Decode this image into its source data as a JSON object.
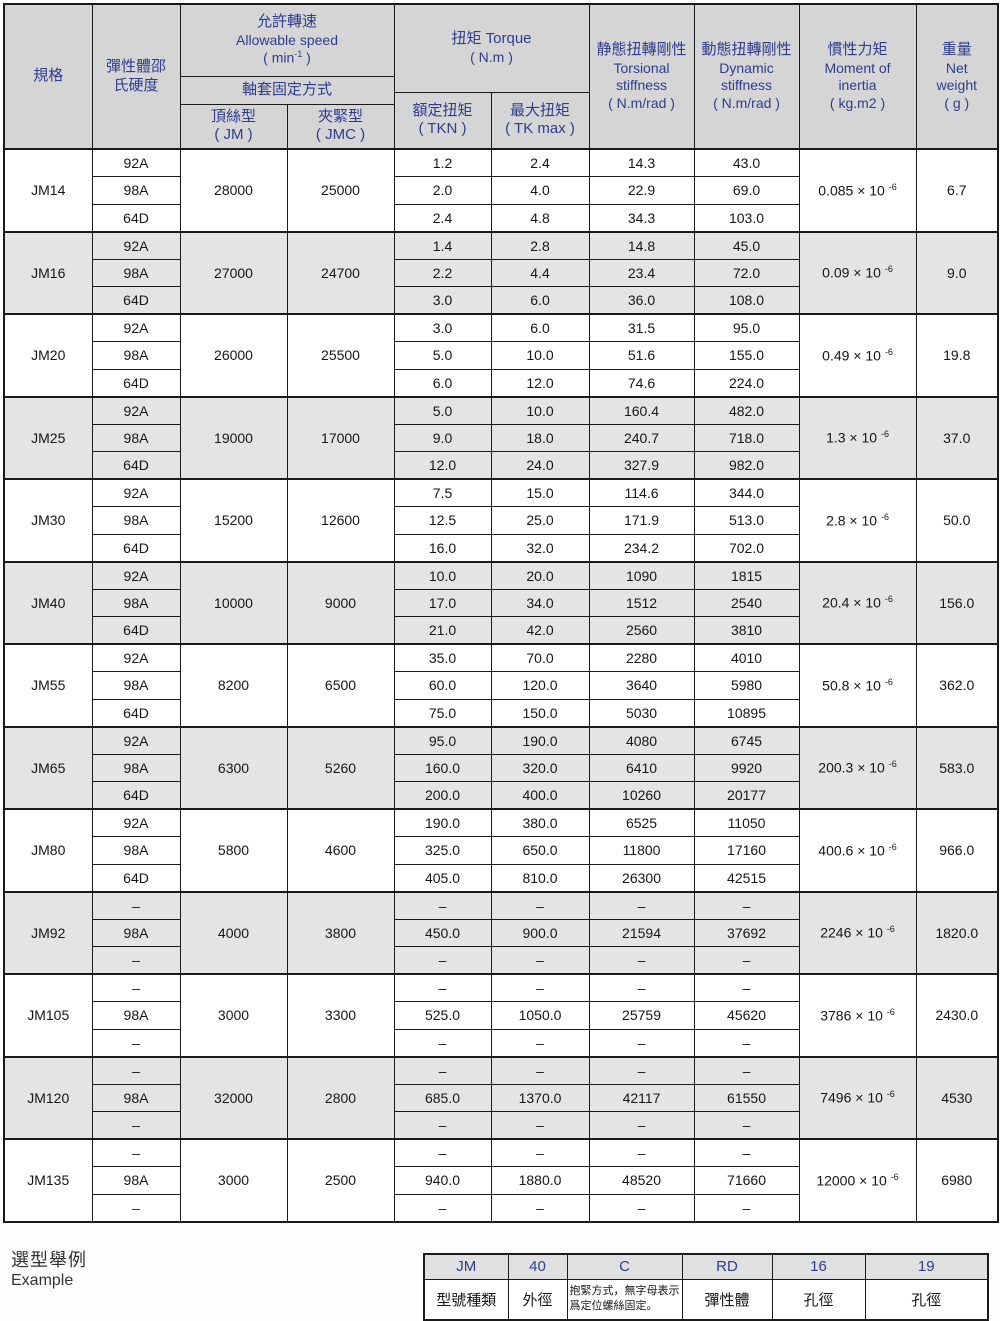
{
  "colors": {
    "header_text": "#2e3d8f",
    "header_bg": "#d5d5d5",
    "band_bg": "#e4e4e4",
    "body_text": "#161616",
    "border": "#1a1a1a"
  },
  "header": {
    "spec": "規格",
    "hardness": "彈性體邵氏硬度",
    "speed": {
      "zh": "允許轉速",
      "en": "Allowable speed",
      "unit_pre": "( min",
      "unit_sup": "-1",
      "unit_post": " )"
    },
    "fixing": "軸套固定方式",
    "set_screw": {
      "l1": "頂絲型",
      "l2": "( JM )"
    },
    "clamp": {
      "l1": "夾緊型",
      "l2": "( JMC )"
    },
    "torque": {
      "zh": "扭矩  Torque",
      "unit": "( N.m )"
    },
    "rated": {
      "l1": "額定扭矩",
      "l2": "( TKN )"
    },
    "max": {
      "l1": "最大扭矩",
      "l2": "( TK max )"
    },
    "static_stiffness": {
      "zh": "静態扭轉剛性",
      "en1": "Torsional",
      "en2": "stiffness",
      "unit": "( N.m/rad )"
    },
    "dynamic_stiffness": {
      "zh": "動態扭轉剛性",
      "en1": "Dynamic",
      "en2": "stiffness",
      "unit": "( N.m/rad )"
    },
    "inertia": {
      "zh": "慣性力矩",
      "en1": "Moment of",
      "en2": "inertia",
      "unit": "( kg.m2 )"
    },
    "weight": {
      "zh": "重量",
      "en1": "Net",
      "en2": "weight",
      "unit": "( g )"
    }
  },
  "table": {
    "inertia_multiplier": "× 10",
    "inertia_exponent": "-6",
    "groups": [
      {
        "spec": "JM14",
        "hardness": [
          "92A",
          "98A",
          "64D"
        ],
        "jm": "28000",
        "jmc": "25000",
        "tkn": [
          "1.2",
          "2.0",
          "2.4"
        ],
        "tkmax": [
          "2.4",
          "4.0",
          "4.8"
        ],
        "ts": [
          "14.3",
          "22.9",
          "34.3"
        ],
        "ds": [
          "43.0",
          "69.0",
          "103.0"
        ],
        "inertia": "0.085",
        "weight": "6.7"
      },
      {
        "spec": "JM16",
        "hardness": [
          "92A",
          "98A",
          "64D"
        ],
        "jm": "27000",
        "jmc": "24700",
        "tkn": [
          "1.4",
          "2.2",
          "3.0"
        ],
        "tkmax": [
          "2.8",
          "4.4",
          "6.0"
        ],
        "ts": [
          "14.8",
          "23.4",
          "36.0"
        ],
        "ds": [
          "45.0",
          "72.0",
          "108.0"
        ],
        "inertia": "0.09",
        "weight": "9.0"
      },
      {
        "spec": "JM20",
        "hardness": [
          "92A",
          "98A",
          "64D"
        ],
        "jm": "26000",
        "jmc": "25500",
        "tkn": [
          "3.0",
          "5.0",
          "6.0"
        ],
        "tkmax": [
          "6.0",
          "10.0",
          "12.0"
        ],
        "ts": [
          "31.5",
          "51.6",
          "74.6"
        ],
        "ds": [
          "95.0",
          "155.0",
          "224.0"
        ],
        "inertia": "0.49",
        "weight": "19.8"
      },
      {
        "spec": "JM25",
        "hardness": [
          "92A",
          "98A",
          "64D"
        ],
        "jm": "19000",
        "jmc": "17000",
        "tkn": [
          "5.0",
          "9.0",
          "12.0"
        ],
        "tkmax": [
          "10.0",
          "18.0",
          "24.0"
        ],
        "ts": [
          "160.4",
          "240.7",
          "327.9"
        ],
        "ds": [
          "482.0",
          "718.0",
          "982.0"
        ],
        "inertia": "1.3",
        "weight": "37.0"
      },
      {
        "spec": "JM30",
        "hardness": [
          "92A",
          "98A",
          "64D"
        ],
        "jm": "15200",
        "jmc": "12600",
        "tkn": [
          "7.5",
          "12.5",
          "16.0"
        ],
        "tkmax": [
          "15.0",
          "25.0",
          "32.0"
        ],
        "ts": [
          "114.6",
          "171.9",
          "234.2"
        ],
        "ds": [
          "344.0",
          "513.0",
          "702.0"
        ],
        "inertia": "2.8",
        "weight": "50.0"
      },
      {
        "spec": "JM40",
        "hardness": [
          "92A",
          "98A",
          "64D"
        ],
        "jm": "10000",
        "jmc": "9000",
        "tkn": [
          "10.0",
          "17.0",
          "21.0"
        ],
        "tkmax": [
          "20.0",
          "34.0",
          "42.0"
        ],
        "ts": [
          "1090",
          "1512",
          "2560"
        ],
        "ds": [
          "1815",
          "2540",
          "3810"
        ],
        "inertia": "20.4",
        "weight": "156.0"
      },
      {
        "spec": "JM55",
        "hardness": [
          "92A",
          "98A",
          "64D"
        ],
        "jm": "8200",
        "jmc": "6500",
        "tkn": [
          "35.0",
          "60.0",
          "75.0"
        ],
        "tkmax": [
          "70.0",
          "120.0",
          "150.0"
        ],
        "ts": [
          "2280",
          "3640",
          "5030"
        ],
        "ds": [
          "4010",
          "5980",
          "10895"
        ],
        "inertia": "50.8",
        "weight": "362.0"
      },
      {
        "spec": "JM65",
        "hardness": [
          "92A",
          "98A",
          "64D"
        ],
        "jm": "6300",
        "jmc": "5260",
        "tkn": [
          "95.0",
          "160.0",
          "200.0"
        ],
        "tkmax": [
          "190.0",
          "320.0",
          "400.0"
        ],
        "ts": [
          "4080",
          "6410",
          "10260"
        ],
        "ds": [
          "6745",
          "9920",
          "20177"
        ],
        "inertia": "200.3",
        "weight": "583.0"
      },
      {
        "spec": "JM80",
        "hardness": [
          "92A",
          "98A",
          "64D"
        ],
        "jm": "5800",
        "jmc": "4600",
        "tkn": [
          "190.0",
          "325.0",
          "405.0"
        ],
        "tkmax": [
          "380.0",
          "650.0",
          "810.0"
        ],
        "ts": [
          "6525",
          "11800",
          "26300"
        ],
        "ds": [
          "11050",
          "17160",
          "42515"
        ],
        "inertia": "400.6",
        "weight": "966.0"
      },
      {
        "spec": "JM92",
        "hardness": [
          "–",
          "98A",
          "–"
        ],
        "jm": "4000",
        "jmc": "3800",
        "tkn": [
          "–",
          "450.0",
          "–"
        ],
        "tkmax": [
          "–",
          "900.0",
          "–"
        ],
        "ts": [
          "–",
          "21594",
          "–"
        ],
        "ds": [
          "–",
          "37692",
          "–"
        ],
        "inertia": "2246",
        "weight": "1820.0"
      },
      {
        "spec": "JM105",
        "hardness": [
          "–",
          "98A",
          "–"
        ],
        "jm": "3000",
        "jmc": "3300",
        "tkn": [
          "–",
          "525.0",
          "–"
        ],
        "tkmax": [
          "–",
          "1050.0",
          "–"
        ],
        "ts": [
          "–",
          "25759",
          "–"
        ],
        "ds": [
          "–",
          "45620",
          "–"
        ],
        "inertia": "3786",
        "weight": "2430.0"
      },
      {
        "spec": "JM120",
        "hardness": [
          "–",
          "98A",
          "–"
        ],
        "jm": "32000",
        "jmc": "2800",
        "tkn": [
          "–",
          "685.0",
          "–"
        ],
        "tkmax": [
          "–",
          "1370.0",
          "–"
        ],
        "ts": [
          "–",
          "42117",
          "–"
        ],
        "ds": [
          "–",
          "61550",
          "–"
        ],
        "inertia": "7496",
        "weight": "4530"
      },
      {
        "spec": "JM135",
        "hardness": [
          "–",
          "98A",
          "–"
        ],
        "jm": "3000",
        "jmc": "2500",
        "tkn": [
          "–",
          "940.0",
          "–"
        ],
        "tkmax": [
          "–",
          "1880.0",
          "–"
        ],
        "ts": [
          "–",
          "48520",
          "–"
        ],
        "ds": [
          "–",
          "71660",
          "–"
        ],
        "inertia": "12000",
        "weight": "6980"
      }
    ]
  },
  "example": {
    "title_zh": "選型舉例",
    "title_en": "Example",
    "codes": [
      "JM",
      "40",
      "C",
      "RD",
      "16",
      "19"
    ],
    "labels": [
      "型號種類",
      "外徑",
      "抱緊方式，無字母表示爲定位螺絲固定。",
      "彈性體",
      "孔徑",
      "孔徑"
    ],
    "note_index": 2
  }
}
